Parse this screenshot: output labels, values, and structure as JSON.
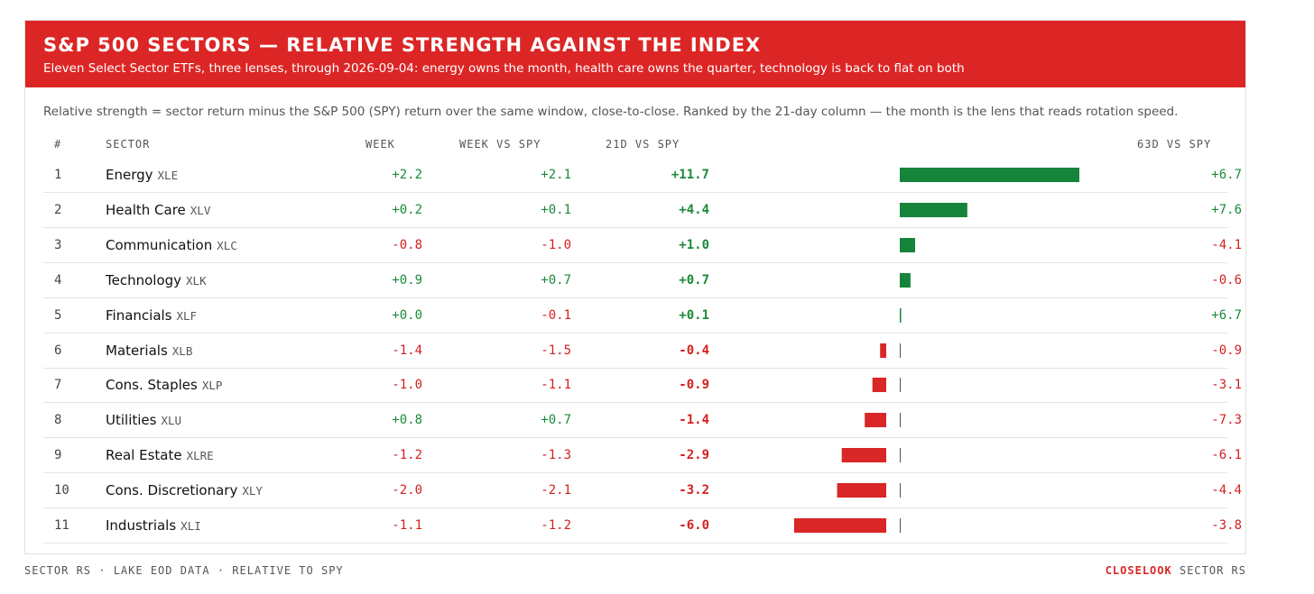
{
  "header": {
    "title": "S&P 500 SECTORS — RELATIVE STRENGTH AGAINST THE INDEX",
    "subtitle": "Eleven Select Sector ETFs, three lenses, through 2026-09-04: energy owns the month, health care owns the quarter, technology is back to flat on both"
  },
  "note": "Relative strength = sector return minus the S&P 500 (SPY) return over the same window, close-to-close. Ranked by the 21-day column — the month is the lens that reads rotation speed.",
  "columns": {
    "rank": "#",
    "sector": "SECTOR",
    "week": "WEEK",
    "week_vs_spy": "WEEK VS SPY",
    "d21_vs_spy": "21D VS SPY",
    "d63_vs_spy": "63D VS SPY"
  },
  "chart_data": {
    "type": "table",
    "rows": [
      {
        "rank": "1",
        "sector": "Energy",
        "ticker": "XLE",
        "week": "+2.2",
        "week_vs_spy": "+2.1",
        "d21_vs_spy": "+11.7",
        "d63_vs_spy": "+6.7",
        "bar": 11.7
      },
      {
        "rank": "2",
        "sector": "Health Care",
        "ticker": "XLV",
        "week": "+0.2",
        "week_vs_spy": "+0.1",
        "d21_vs_spy": "+4.4",
        "d63_vs_spy": "+7.6",
        "bar": 4.4
      },
      {
        "rank": "3",
        "sector": "Communication",
        "ticker": "XLC",
        "week": "-0.8",
        "week_vs_spy": "-1.0",
        "d21_vs_spy": "+1.0",
        "d63_vs_spy": "-4.1",
        "bar": 1.0
      },
      {
        "rank": "4",
        "sector": "Technology",
        "ticker": "XLK",
        "week": "+0.9",
        "week_vs_spy": "+0.7",
        "d21_vs_spy": "+0.7",
        "d63_vs_spy": "-0.6",
        "bar": 0.7
      },
      {
        "rank": "5",
        "sector": "Financials",
        "ticker": "XLF",
        "week": "+0.0",
        "week_vs_spy": "-0.1",
        "d21_vs_spy": "+0.1",
        "d63_vs_spy": "+6.7",
        "bar": 0.1
      },
      {
        "rank": "6",
        "sector": "Materials",
        "ticker": "XLB",
        "week": "-1.4",
        "week_vs_spy": "-1.5",
        "d21_vs_spy": "-0.4",
        "d63_vs_spy": "-0.9",
        "bar": -0.4
      },
      {
        "rank": "7",
        "sector": "Cons. Staples",
        "ticker": "XLP",
        "week": "-1.0",
        "week_vs_spy": "-1.1",
        "d21_vs_spy": "-0.9",
        "d63_vs_spy": "-3.1",
        "bar": -0.9
      },
      {
        "rank": "8",
        "sector": "Utilities",
        "ticker": "XLU",
        "week": "+0.8",
        "week_vs_spy": "+0.7",
        "d21_vs_spy": "-1.4",
        "d63_vs_spy": "-7.3",
        "bar": -1.4
      },
      {
        "rank": "9",
        "sector": "Real Estate",
        "ticker": "XLRE",
        "week": "-1.2",
        "week_vs_spy": "-1.3",
        "d21_vs_spy": "-2.9",
        "d63_vs_spy": "-6.1",
        "bar": -2.9
      },
      {
        "rank": "10",
        "sector": "Cons. Discretionary",
        "ticker": "XLY",
        "week": "-2.0",
        "week_vs_spy": "-2.1",
        "d21_vs_spy": "-3.2",
        "d63_vs_spy": "-4.4",
        "bar": -3.2
      },
      {
        "rank": "11",
        "sector": "Industrials",
        "ticker": "XLI",
        "week": "-1.1",
        "week_vs_spy": "-1.2",
        "d21_vs_spy": "-6.0",
        "d63_vs_spy": "-3.8",
        "bar": -6.0
      }
    ],
    "bar_colors": {
      "positive": "#16843a",
      "negative": "#d92626"
    }
  },
  "footer": {
    "left": "SECTOR RS · LAKE EOD DATA · RELATIVE TO SPY",
    "brand": "CLOSELOOK",
    "right": "SECTOR RS"
  }
}
